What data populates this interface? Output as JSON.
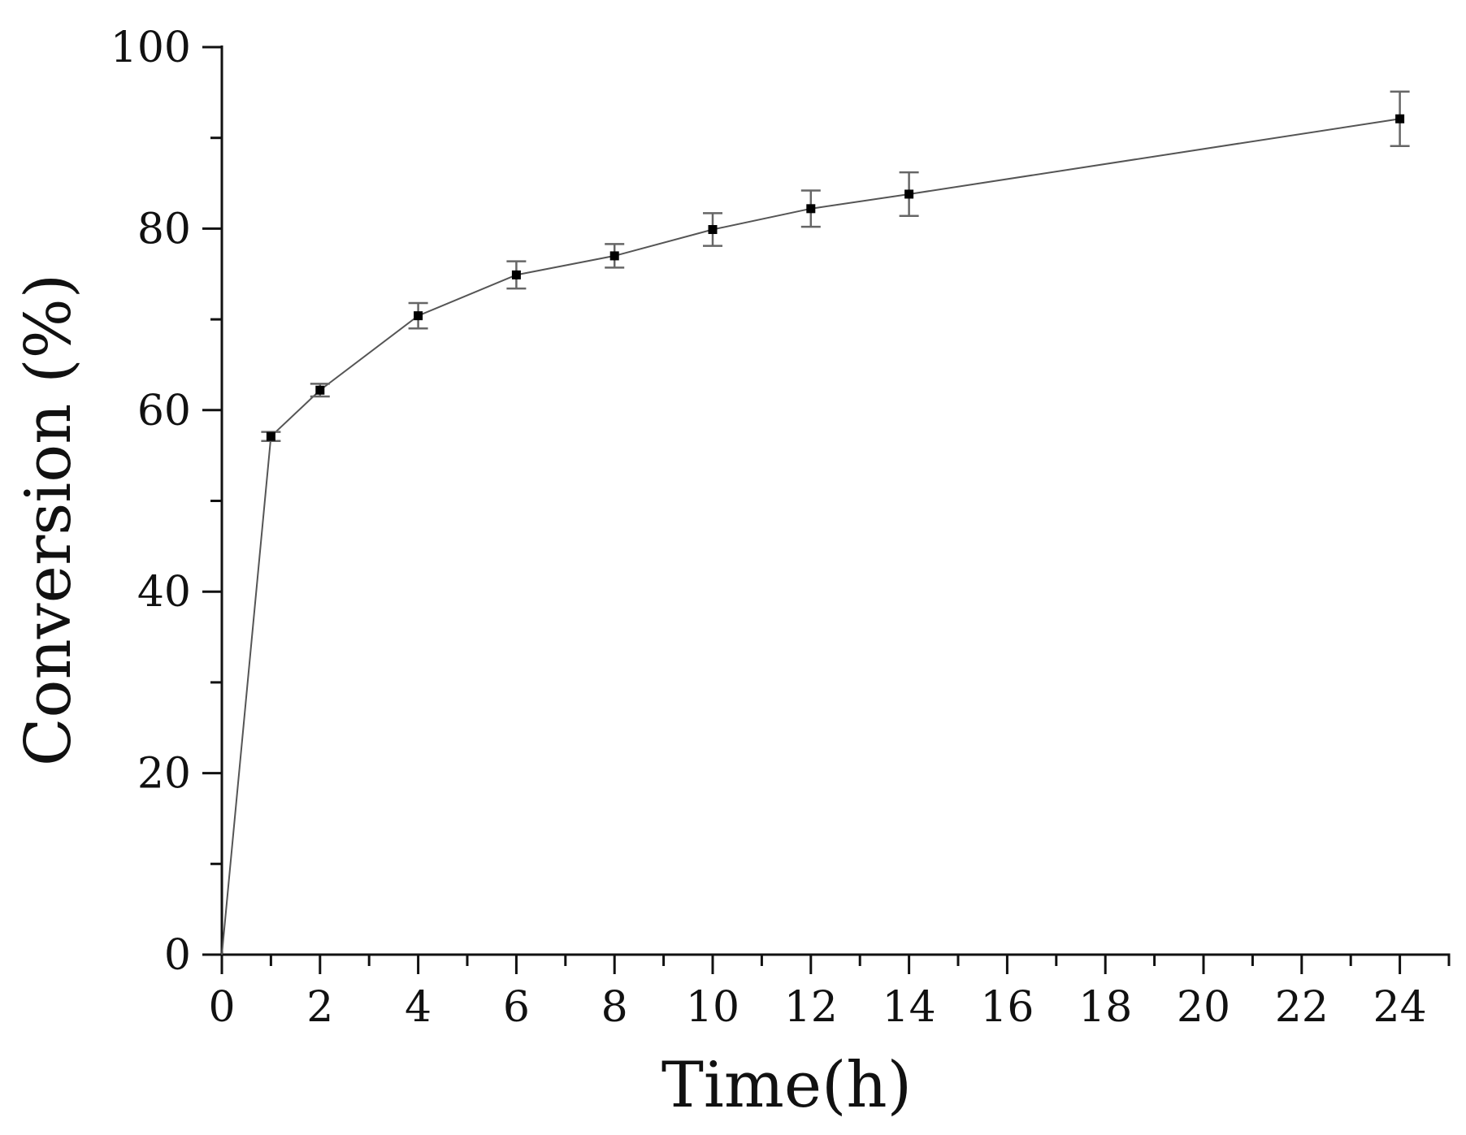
{
  "chart_data": {
    "type": "line",
    "title": "",
    "xlabel": "Time(h)",
    "ylabel": "Conversion (%)",
    "xlim": [
      0,
      25
    ],
    "ylim": [
      0,
      100
    ],
    "x_ticks": [
      0,
      2,
      4,
      6,
      8,
      10,
      12,
      14,
      16,
      18,
      20,
      22,
      24
    ],
    "y_ticks": [
      0,
      20,
      40,
      60,
      80,
      100
    ],
    "x_minor_ticks": [
      1,
      3,
      5,
      7,
      9,
      11,
      13,
      15,
      17,
      19,
      21,
      23,
      25
    ],
    "y_minor_ticks": [
      10,
      30,
      50,
      70,
      90
    ],
    "grid": false,
    "legend": null,
    "series": [
      {
        "name": "Conversion",
        "marker": "square",
        "x": [
          0,
          1,
          2,
          4,
          6,
          8,
          10,
          12,
          14,
          24
        ],
        "values": [
          0,
          57.1,
          62.2,
          70.4,
          74.9,
          77.0,
          79.9,
          82.2,
          83.8,
          92.1
        ],
        "error": [
          0,
          0.5,
          0.7,
          1.4,
          1.5,
          1.3,
          1.8,
          2.0,
          2.4,
          3.0
        ]
      }
    ]
  },
  "colors": {
    "axis": "#111111",
    "line": "#555555",
    "marker": "#000000",
    "errorbar": "#666666"
  }
}
